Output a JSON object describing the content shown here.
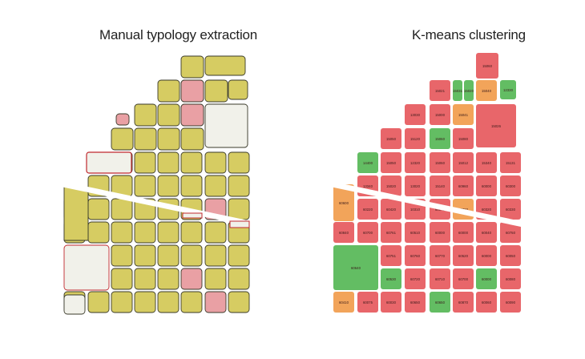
{
  "left_panel": {
    "title": "Manual typology extraction"
  },
  "right_panel": {
    "title": "K-means clustering"
  },
  "colors": {
    "olive": "#d6cc62",
    "olive_stroke": "#3a3a2a",
    "pink": "#e9a0a4",
    "pink_outline": "#c0282e",
    "white_block": "#f1f1ea",
    "red": "#e8666a",
    "green": "#63bd63",
    "orange": "#f2a45a",
    "diagonal_gap": "#ffffff"
  },
  "right_labels": [
    "15060",
    "15021",
    "15031",
    "15020",
    "15040",
    "12330",
    "13030",
    "15000",
    "15041",
    "15026",
    "15050",
    "15120",
    "15060",
    "15080",
    "14400",
    "15050",
    "12320",
    "15060",
    "15012",
    "15340",
    "15131",
    "13340",
    "15020",
    "13020",
    "15140",
    "60960",
    "60000",
    "60300",
    "60320",
    "60220",
    "60420",
    "10310",
    "60071",
    "60322",
    "60320",
    "60330",
    "60840",
    "60700",
    "60761",
    "60510",
    "60000",
    "60000",
    "60040",
    "60750",
    "60751",
    "60760",
    "60770",
    "60520",
    "60000",
    "60050",
    "60530",
    "60720",
    "60710",
    "60700",
    "60000",
    "60080",
    "60410",
    "60075",
    "60030",
    "60650",
    "60650",
    "60870",
    "60060",
    "60090",
    "60600",
    "60640",
    "60630",
    "60020",
    "60840",
    "60630",
    "60620",
    "60010"
  ]
}
